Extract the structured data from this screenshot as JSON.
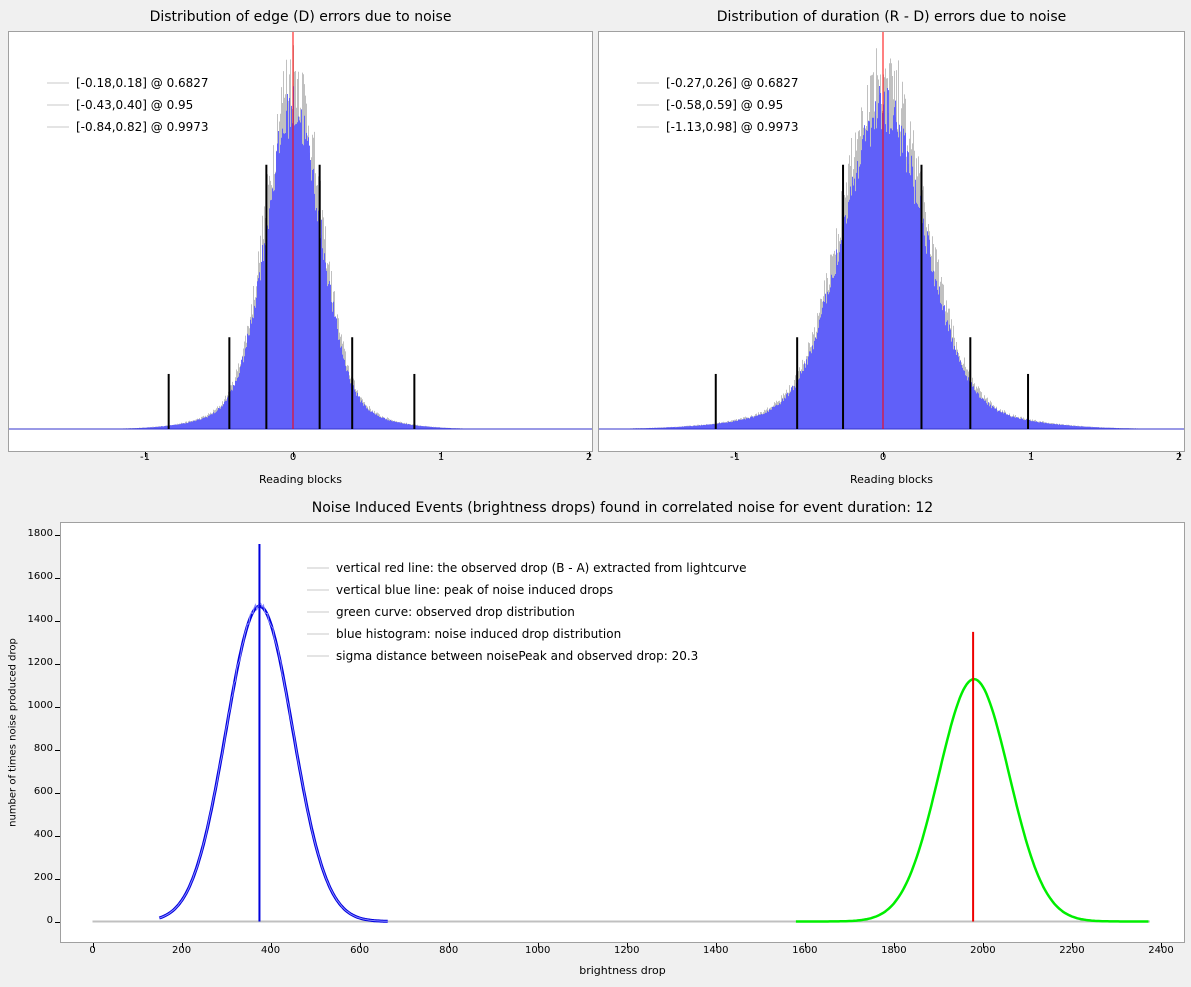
{
  "chart_data": [
    {
      "type": "bar",
      "title": "Distribution of edge (D) errors due to noise",
      "xlabel": "Reading blocks",
      "ylabel": "",
      "xlim": [
        -1.9,
        2.0
      ],
      "x_ticks": [
        "-1",
        "0",
        "1",
        "2"
      ],
      "y_ticks_visible": false,
      "grid": false,
      "legend_position": "top-left",
      "histogram": {
        "color": "#5555ff",
        "outline_color": "#c0c0c0",
        "center": 0.0,
        "std": 0.18,
        "peak_rel": 0.98
      },
      "center_line": {
        "x": 0,
        "color": "#ff0000"
      },
      "confidence_intervals": [
        {
          "label": "[-0.18,0.18] @ 0.6827",
          "low": -0.18,
          "high": 0.18,
          "bar_height_rel": 0.72
        },
        {
          "label": "[-0.43,0.40] @ 0.95",
          "low": -0.43,
          "high": 0.4,
          "bar_height_rel": 0.25
        },
        {
          "label": "[-0.84,0.82] @ 0.9973",
          "low": -0.84,
          "high": 0.82,
          "bar_height_rel": 0.15
        }
      ]
    },
    {
      "type": "bar",
      "title": "Distribution of duration (R - D) errors due to noise",
      "xlabel": "Reading blocks",
      "ylabel": "",
      "xlim": [
        -1.9,
        2.0
      ],
      "x_ticks": [
        "-1",
        "0",
        "1",
        "2"
      ],
      "y_ticks_visible": false,
      "grid": false,
      "legend_position": "top-left",
      "histogram": {
        "color": "#5555ff",
        "outline_color": "#c0c0c0",
        "center": 0.0,
        "std": 0.27,
        "peak_rel": 0.98
      },
      "center_line": {
        "x": 0,
        "color": "#ff0000"
      },
      "confidence_intervals": [
        {
          "label": "[-0.27,0.26] @ 0.6827",
          "low": -0.27,
          "high": 0.26,
          "bar_height_rel": 0.72
        },
        {
          "label": "[-0.58,0.59] @ 0.95",
          "low": -0.58,
          "high": 0.59,
          "bar_height_rel": 0.25
        },
        {
          "label": "[-1.13,0.98] @ 0.9973",
          "low": -1.13,
          "high": 0.98,
          "bar_height_rel": 0.15
        }
      ]
    },
    {
      "type": "line",
      "title": "Noise Induced Events (brightness drops) found in correlated noise for event duration: 12",
      "xlabel": "brightness drop",
      "ylabel": "number of times noise produced drop",
      "xlim": [
        -70,
        2450
      ],
      "ylim": [
        -90,
        1850
      ],
      "x_ticks": [
        0,
        200,
        400,
        600,
        800,
        1000,
        1200,
        1400,
        1600,
        1800,
        2000,
        2200,
        2400
      ],
      "y_ticks": [
        0,
        200,
        400,
        600,
        800,
        1000,
        1200,
        1400,
        1600,
        1800
      ],
      "grid": false,
      "legend_position": "top-center",
      "legend": [
        "vertical red line: the observed drop (B - A) extracted from lightcurve",
        "vertical blue line: peak of noise induced drops",
        "green curve: observed drop distribution",
        "blue histogram: noise induced drop distribution",
        "sigma distance between noisePeak and observed drop: 20.3"
      ],
      "series": [
        {
          "kind": "noise-histogram",
          "color": "#0000dd",
          "center": 375,
          "std": 75,
          "peak": 1470,
          "x_range": [
            150,
            665
          ]
        },
        {
          "kind": "observed-distribution",
          "color": "#00ee00",
          "center": 1980,
          "std": 79,
          "peak": 1130,
          "x_range": [
            1580,
            2375
          ]
        }
      ],
      "baseline": {
        "color": "#c0c0c0",
        "x_range": [
          0,
          2375
        ],
        "y": 0
      },
      "vertical_lines": [
        {
          "name": "noise-peak",
          "x": 375,
          "y_top": 1760,
          "color": "#0000dd"
        },
        {
          "name": "observed-drop",
          "x": 1978,
          "y_top": 1350,
          "color": "#ee0000"
        }
      ]
    }
  ]
}
